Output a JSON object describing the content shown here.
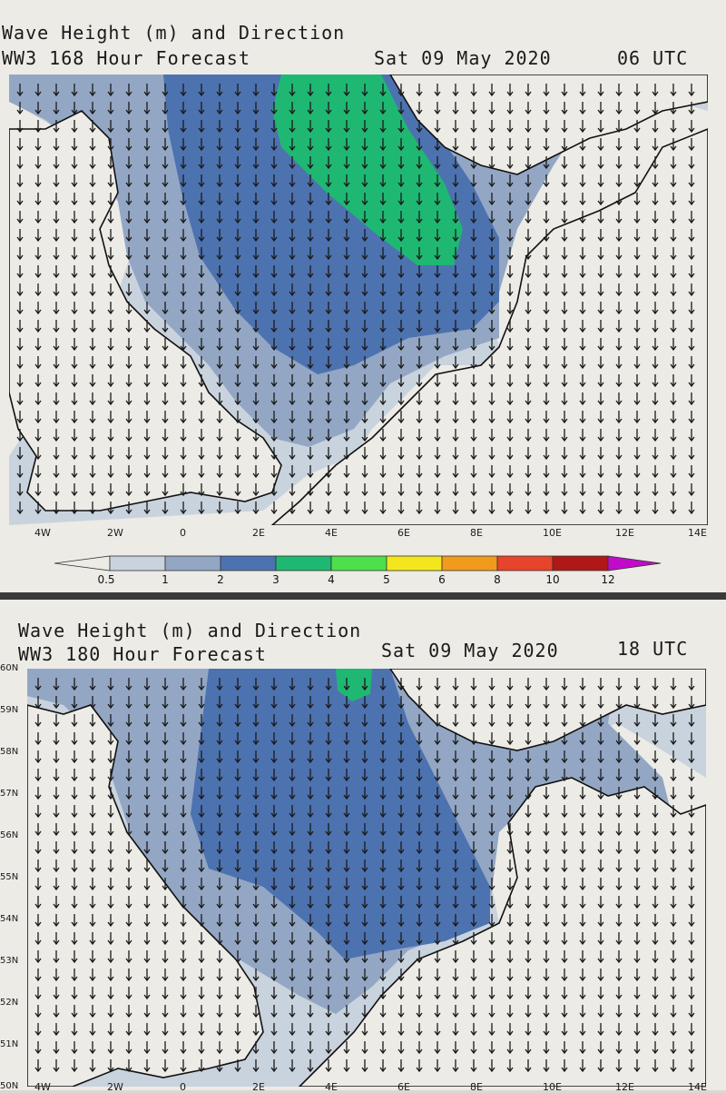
{
  "panels": [
    {
      "title": "Wave Height (m) and Direction",
      "subtitle": "WW3 168 Hour Forecast",
      "date": "Sat 09 May 2020",
      "time": "06 UTC"
    },
    {
      "title": "Wave Height (m) and Direction",
      "subtitle": "WW3 180 Hour Forecast",
      "date": "Sat 09 May 2020",
      "time": "18 UTC"
    }
  ],
  "longitude_ticks": [
    "4W",
    "2W",
    "0",
    "2E",
    "4E",
    "6E",
    "8E",
    "10E",
    "12E",
    "14E"
  ],
  "latitude_ticks": [
    "60N",
    "59N",
    "58N",
    "57N",
    "56N",
    "55N",
    "54N",
    "53N",
    "52N",
    "51N",
    "50N"
  ],
  "colorbar": {
    "labels": [
      "0.5",
      "1",
      "2",
      "3",
      "4",
      "5",
      "6",
      "8",
      "10",
      "12"
    ],
    "colors": [
      "#ecebe6",
      "#c9d3de",
      "#93a7c4",
      "#4d72b0",
      "#1fb872",
      "#4ee04a",
      "#f3e61c",
      "#f29a1c",
      "#e8432b",
      "#b01818",
      "#c00cc8"
    ],
    "unit": "m"
  },
  "colors": {
    "land": "#ecebe6",
    "coast": "#111111",
    "border": "#b9a9b9",
    "arrow": "#1a1a1a"
  }
}
